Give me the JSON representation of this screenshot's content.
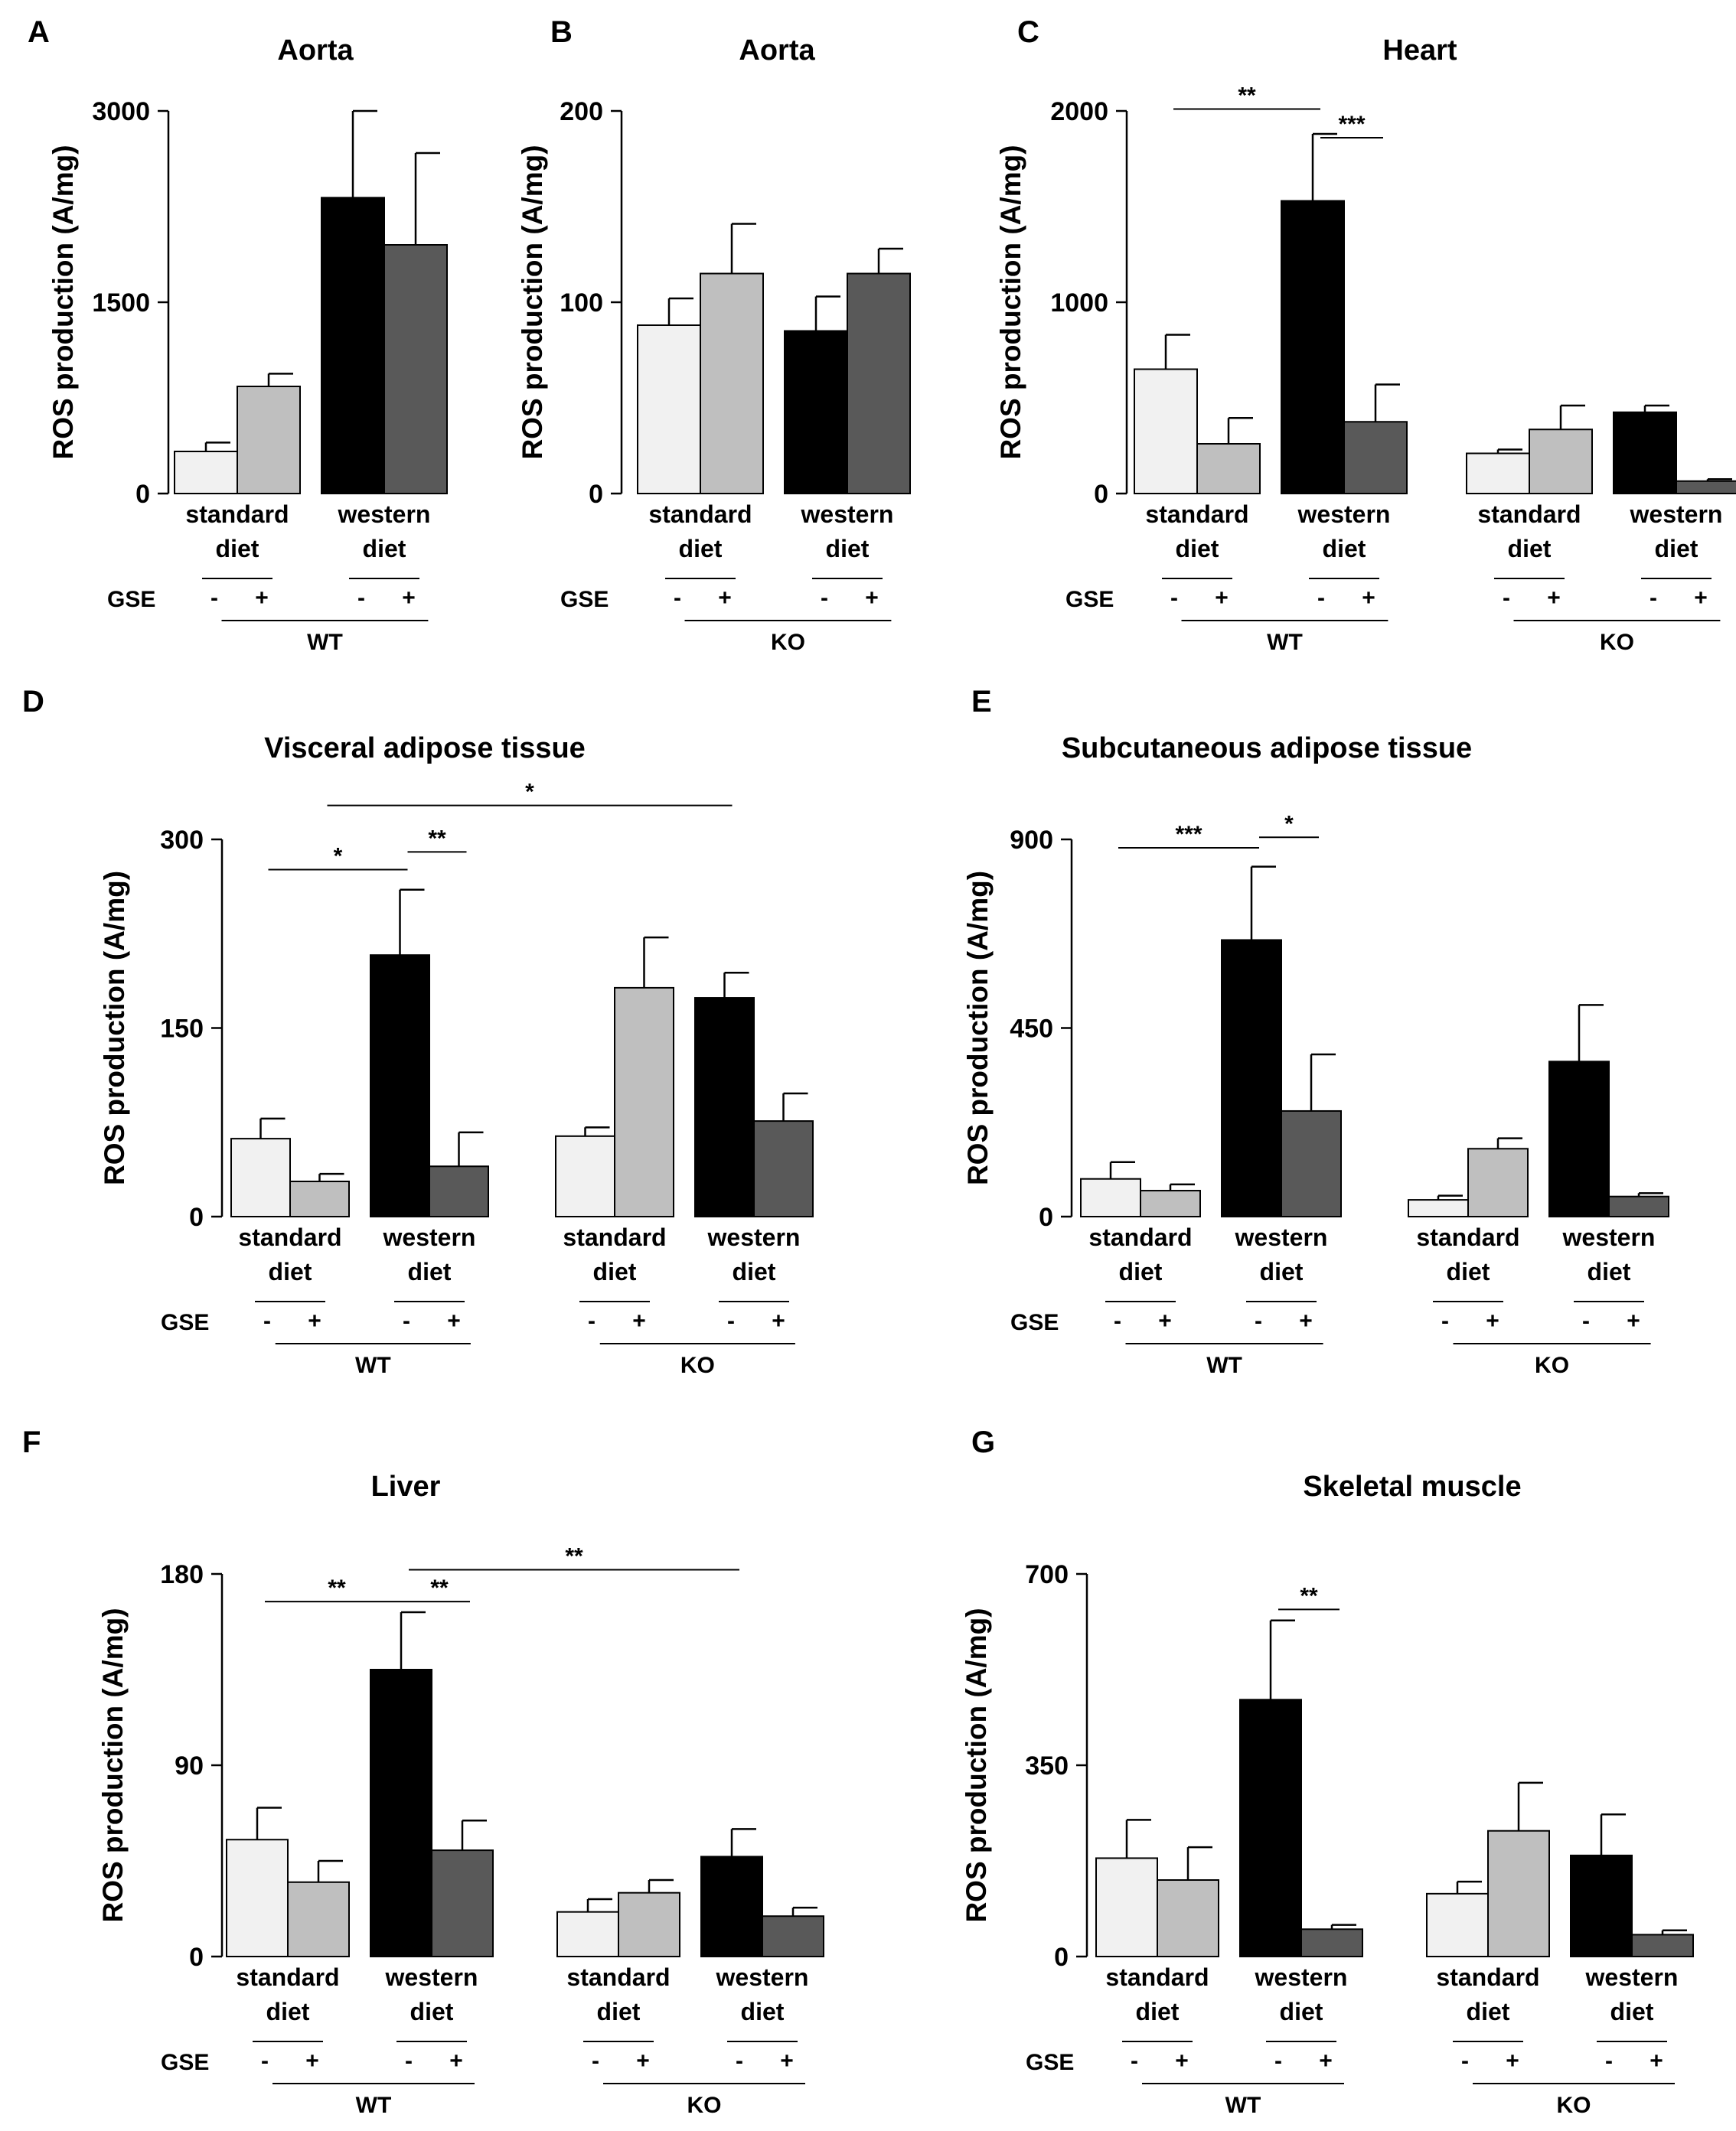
{
  "colors": {
    "standard_minus": "#f1f1f1",
    "standard_plus": "#bfbfbf",
    "western_minus": "#000000",
    "western_plus": "#595959"
  },
  "labels": {
    "ylabel": "ROS production (A/mg)",
    "gse": "GSE",
    "minus": "-",
    "plus": "+",
    "standard": "standard",
    "western": "western",
    "diet": "diet"
  },
  "chart_data": [
    {
      "panel": "A",
      "title": "Aorta",
      "type": "bar",
      "ylabel": "ROS production (A/mg)",
      "ylim": [
        0,
        3000
      ],
      "yticks": [
        0,
        1500,
        3000
      ],
      "genotypes": [
        "WT"
      ],
      "categories": [
        "standard diet GSE-",
        "standard diet GSE+",
        "western diet GSE-",
        "western diet GSE+"
      ],
      "values": [
        330,
        840,
        2320,
        1950
      ],
      "errors": [
        70,
        100,
        680,
        720
      ],
      "significance": []
    },
    {
      "panel": "B",
      "title": "Aorta",
      "type": "bar",
      "ylabel": "ROS production (A/mg)",
      "ylim": [
        0,
        200
      ],
      "yticks": [
        0,
        100,
        200
      ],
      "genotypes": [
        "KO"
      ],
      "categories": [
        "standard diet GSE-",
        "standard diet GSE+",
        "western diet GSE-",
        "western diet GSE+"
      ],
      "values": [
        88,
        115,
        85,
        115
      ],
      "errors": [
        14,
        26,
        18,
        13
      ],
      "significance": []
    },
    {
      "panel": "C",
      "title": "Heart",
      "type": "bar",
      "ylabel": "ROS production (A/mg)",
      "ylim": [
        0,
        2000
      ],
      "yticks": [
        0,
        1000,
        2000
      ],
      "genotypes": [
        "WT",
        "KO"
      ],
      "categories": [
        "WT standard GSE-",
        "WT standard GSE+",
        "WT western GSE-",
        "WT western GSE+",
        "KO standard GSE-",
        "KO standard GSE+",
        "KO western GSE-",
        "KO western GSE+"
      ],
      "values": [
        650,
        260,
        1530,
        375,
        210,
        335,
        425,
        65
      ],
      "errors": [
        180,
        135,
        350,
        195,
        20,
        125,
        35,
        10
      ],
      "significance": [
        {
          "from": 0,
          "to": 2,
          "label": "**",
          "level": 2010
        },
        {
          "from": 2,
          "to": 3,
          "label": "***",
          "level": 1860
        }
      ]
    },
    {
      "panel": "D",
      "title": "Visceral adipose tissue",
      "type": "bar",
      "ylabel": "ROS production (A/mg)",
      "ylim": [
        0,
        300
      ],
      "yticks": [
        0,
        150,
        300
      ],
      "genotypes": [
        "WT",
        "KO"
      ],
      "categories": [
        "WT standard GSE-",
        "WT standard GSE+",
        "WT western GSE-",
        "WT western GSE+",
        "KO standard GSE-",
        "KO standard GSE+",
        "KO western GSE-",
        "KO western GSE+"
      ],
      "values": [
        62,
        28,
        208,
        40,
        64,
        182,
        174,
        76
      ],
      "errors": [
        16,
        6,
        52,
        27,
        7,
        40,
        20,
        22
      ],
      "significance": [
        {
          "from": 0,
          "to": 2,
          "label": "*",
          "level": 276
        },
        {
          "from": 2,
          "to": 3,
          "label": "**",
          "level": 290
        },
        {
          "from": 1,
          "to": 6,
          "label": "*",
          "level": 327
        }
      ]
    },
    {
      "panel": "E",
      "title": "Subcutaneous  adipose tissue",
      "type": "bar",
      "ylabel": "ROS production (A/mg)",
      "ylim": [
        0,
        900
      ],
      "yticks": [
        0,
        450,
        900
      ],
      "genotypes": [
        "WT",
        "KO"
      ],
      "categories": [
        "WT standard GSE-",
        "WT standard GSE+",
        "WT western GSE-",
        "WT western GSE+",
        "KO standard GSE-",
        "KO standard GSE+",
        "KO western GSE-",
        "KO western GSE+"
      ],
      "values": [
        90,
        62,
        660,
        252,
        40,
        162,
        370,
        48
      ],
      "errors": [
        40,
        15,
        175,
        135,
        10,
        25,
        135,
        8
      ],
      "significance": [
        {
          "from": 0,
          "to": 2,
          "label": "***",
          "level": 880
        },
        {
          "from": 2,
          "to": 3,
          "label": "*",
          "level": 905
        }
      ]
    },
    {
      "panel": "F",
      "title": "Liver",
      "type": "bar",
      "ylabel": "ROS production (A/mg)",
      "ylim": [
        0,
        180
      ],
      "yticks": [
        0,
        90,
        180
      ],
      "genotypes": [
        "WT",
        "KO"
      ],
      "categories": [
        "WT standard GSE-",
        "WT standard GSE+",
        "WT western GSE-",
        "WT western GSE+",
        "KO standard GSE-",
        "KO standard GSE+",
        "KO western GSE-",
        "KO western GSE+"
      ],
      "values": [
        55,
        35,
        135,
        50,
        21,
        30,
        47,
        19
      ],
      "errors": [
        15,
        10,
        27,
        14,
        6,
        6,
        13,
        4
      ],
      "significance": [
        {
          "from": 0,
          "to": 2,
          "label": "**",
          "level": 167
        },
        {
          "from": 2,
          "to": 3,
          "label": "**",
          "level": 167
        },
        {
          "from": 2,
          "to": 6,
          "label": "**",
          "level": 182
        }
      ]
    },
    {
      "panel": "G",
      "title": "Skeletal muscle",
      "type": "bar",
      "ylabel": "ROS production (A/mg)",
      "ylim": [
        0,
        700
      ],
      "yticks": [
        0,
        350,
        700
      ],
      "genotypes": [
        "WT",
        "KO"
      ],
      "categories": [
        "WT standard GSE-",
        "WT standard GSE+",
        "WT western GSE-",
        "WT western GSE+",
        "KO standard GSE-",
        "KO standard GSE+",
        "KO western GSE-",
        "KO western GSE+"
      ],
      "values": [
        180,
        140,
        470,
        50,
        115,
        230,
        185,
        40
      ],
      "errors": [
        70,
        60,
        145,
        8,
        22,
        88,
        75,
        8
      ],
      "significance": [
        {
          "from": 2,
          "to": 3,
          "label": "**",
          "level": 635
        }
      ]
    }
  ]
}
